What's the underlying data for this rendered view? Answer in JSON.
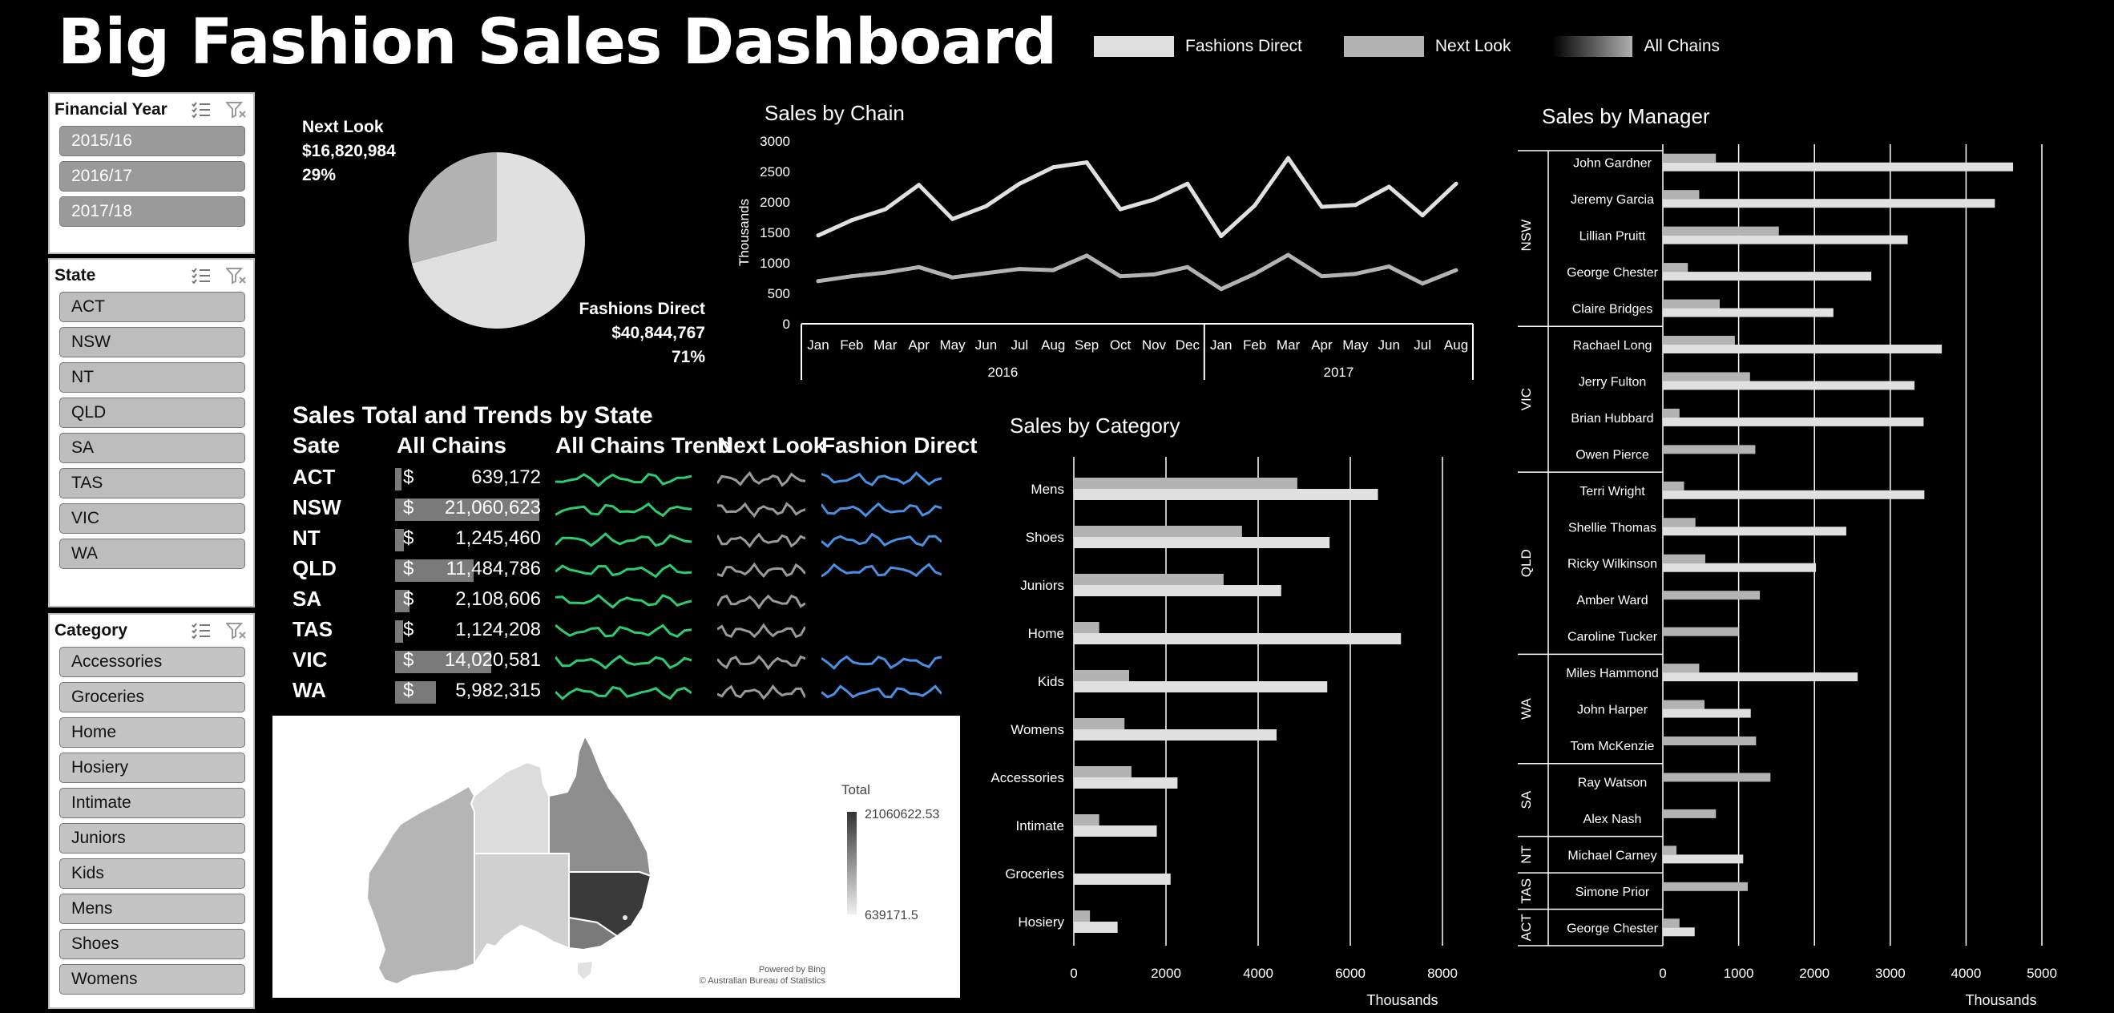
{
  "title": "Big Fashion Sales Dashboard",
  "legend": [
    {
      "label": "Fashions Direct",
      "color": "#e0e0e0"
    },
    {
      "label": "Next Look",
      "color": "#b3b3b3"
    },
    {
      "label": "All Chains",
      "color": "#8a8a8a"
    }
  ],
  "slicers": {
    "year": {
      "title": "Financial Year",
      "items": [
        "2015/16",
        "2016/17",
        "2017/18"
      ]
    },
    "state": {
      "title": "State",
      "items": [
        "ACT",
        "NSW",
        "NT",
        "QLD",
        "SA",
        "TAS",
        "VIC",
        "WA"
      ]
    },
    "category": {
      "title": "Category",
      "items": [
        "Accessories",
        "Groceries",
        "Home",
        "Hosiery",
        "Intimate",
        "Juniors",
        "Kids",
        "Mens",
        "Shoes",
        "Womens"
      ]
    }
  },
  "pie_labels": {
    "next_look": {
      "name": "Next Look",
      "value": "$16,820,984",
      "pct": "29%"
    },
    "fashions_direct": {
      "name": "Fashions Direct",
      "value": "$40,844,767",
      "pct": "71%"
    }
  },
  "table": {
    "title": "Sales Total and Trends by State",
    "headers": [
      "Sate",
      "All Chains",
      "All Chains Trend",
      "Next Look",
      "Fashion Direct"
    ],
    "rows": [
      {
        "state": "ACT",
        "dollar": "$",
        "value": "639,172",
        "nl": true,
        "fd": true
      },
      {
        "state": "NSW",
        "dollar": "$",
        "value": "21,060,623",
        "nl": true,
        "fd": true
      },
      {
        "state": "NT",
        "dollar": "$",
        "value": "1,245,460",
        "nl": true,
        "fd": true
      },
      {
        "state": "QLD",
        "dollar": "$",
        "value": "11,484,786",
        "nl": true,
        "fd": true
      },
      {
        "state": "SA",
        "dollar": "$",
        "value": "2,108,606",
        "nl": true,
        "fd": false
      },
      {
        "state": "TAS",
        "dollar": "$",
        "value": "1,124,208",
        "nl": true,
        "fd": false
      },
      {
        "state": "VIC",
        "dollar": "$",
        "value": "14,020,581",
        "nl": true,
        "fd": true
      },
      {
        "state": "WA",
        "dollar": "$",
        "value": "5,982,315",
        "nl": true,
        "fd": true
      }
    ]
  },
  "map": {
    "legend_title": "Total",
    "legend_max": "21060622.53",
    "legend_min": "639171.5",
    "credit1": "Powered by Bing",
    "credit2": "© Australian Bureau of Statistics"
  },
  "chart_data": [
    {
      "type": "pie",
      "title": "",
      "labels": [
        "Fashions Direct",
        "Next Look"
      ],
      "values": [
        40844767,
        16820984
      ],
      "colors": [
        "#e0e0e0",
        "#b3b3b3"
      ]
    },
    {
      "type": "line",
      "title": "Sales by Chain",
      "ylabel": "Thousands",
      "ylim": [
        0,
        3000
      ],
      "yticks": [
        "0",
        "500",
        "1000",
        "1500",
        "2000",
        "2500",
        "3000"
      ],
      "x": [
        "Jan",
        "Feb",
        "Mar",
        "Apr",
        "May",
        "Jun",
        "Jul",
        "Aug",
        "Sep",
        "Oct",
        "Nov",
        "Dec",
        "Jan",
        "Feb",
        "Mar",
        "Apr",
        "May",
        "Jun",
        "Jul",
        "Aug"
      ],
      "year_groups": [
        {
          "label": "2016",
          "count": 12
        },
        {
          "label": "2017",
          "count": 8
        }
      ],
      "series": [
        {
          "name": "Fashions Direct",
          "color": "#e0e0e0",
          "values": [
            1450,
            1700,
            1880,
            2280,
            1720,
            1930,
            2300,
            2570,
            2650,
            1880,
            2040,
            2300,
            1440,
            1940,
            2720,
            1920,
            1950,
            2250,
            1780,
            2300
          ]
        },
        {
          "name": "Next Look",
          "color": "#b3b3b3",
          "values": [
            700,
            780,
            840,
            930,
            760,
            830,
            900,
            880,
            1120,
            780,
            810,
            930,
            570,
            820,
            1130,
            780,
            820,
            940,
            660,
            880
          ]
        }
      ],
      "grid": false
    },
    {
      "type": "bar",
      "orientation": "horizontal",
      "title": "Sales by Category",
      "xlabel": "Thousands",
      "xlim": [
        0,
        8000
      ],
      "xticks": [
        "0",
        "2000",
        "4000",
        "6000",
        "8000"
      ],
      "categories": [
        "Mens",
        "Shoes",
        "Juniors",
        "Home",
        "Kids",
        "Womens",
        "Accessories",
        "Intimate",
        "Groceries",
        "Hosiery"
      ],
      "series": [
        {
          "name": "Next Look",
          "color": "#b3b3b3",
          "values": [
            4850,
            3650,
            3250,
            550,
            1200,
            1100,
            1250,
            550,
            0,
            350
          ]
        },
        {
          "name": "Fashions Direct",
          "color": "#e0e0e0",
          "values": [
            6600,
            5550,
            4500,
            7100,
            5500,
            4400,
            2250,
            1800,
            2100,
            950
          ]
        }
      ],
      "grid": true
    },
    {
      "type": "bar",
      "orientation": "horizontal",
      "title": "Sales by Manager",
      "xlabel": "Thousands",
      "xlim": [
        0,
        5000
      ],
      "xticks": [
        "0",
        "1000",
        "2000",
        "3000",
        "4000",
        "5000"
      ],
      "groups": [
        {
          "label": "NSW",
          "managers": [
            "John Gardner",
            "Jeremy Garcia",
            "Lillian Pruitt",
            "George Chester",
            "Claire Bridges"
          ]
        },
        {
          "label": "VIC",
          "managers": [
            "Rachael Long",
            "Jerry Fulton",
            "Brian Hubbard",
            "Owen Pierce"
          ]
        },
        {
          "label": "QLD",
          "managers": [
            "Terri Wright",
            "Shellie Thomas",
            "Ricky Wilkinson",
            "Amber Ward",
            "Caroline Tucker"
          ]
        },
        {
          "label": "WA",
          "managers": [
            "Miles Hammond",
            "John Harper",
            "Tom McKenzie"
          ]
        },
        {
          "label": "SA",
          "managers": [
            "Ray Watson",
            "Alex Nash"
          ]
        },
        {
          "label": "NT",
          "managers": [
            "Michael Carney"
          ]
        },
        {
          "label": "TAS",
          "managers": [
            "Simone Prior"
          ]
        },
        {
          "label": "ACT",
          "managers": [
            "George Chester"
          ]
        }
      ],
      "series": [
        {
          "name": "Next Look",
          "color": "#b3b3b3",
          "values": [
            700,
            480,
            1530,
            330,
            750,
            950,
            1150,
            220,
            1220,
            280,
            430,
            560,
            1280,
            1000,
            480,
            550,
            1230,
            1420,
            700,
            180,
            1120,
            220
          ]
        },
        {
          "name": "Fashions Direct",
          "color": "#e0e0e0",
          "values": [
            4620,
            4380,
            3230,
            2750,
            2250,
            3680,
            3320,
            3440,
            0,
            3450,
            2420,
            2020,
            0,
            0,
            2570,
            1160,
            0,
            0,
            0,
            1060,
            0,
            420
          ]
        }
      ],
      "grid": true
    }
  ]
}
